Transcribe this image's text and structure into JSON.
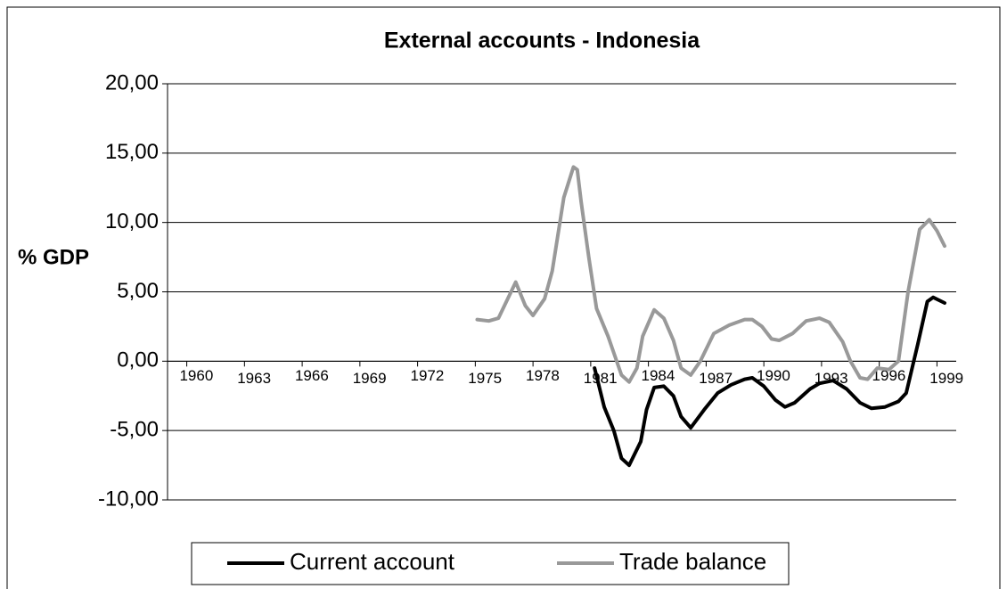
{
  "chart_data": {
    "type": "line",
    "title": "External accounts - Indonesia",
    "y_label": "% GDP",
    "xlim": [
      1958.5,
      1999.5
    ],
    "xticks": [
      1960,
      1963,
      1966,
      1969,
      1972,
      1975,
      1978,
      1981,
      1984,
      1987,
      1990,
      1993,
      1996,
      1999
    ],
    "ylim": [
      -10,
      20
    ],
    "yticks": [
      {
        "value": -10,
        "label": "-10,00"
      },
      {
        "value": -5,
        "label": "-5,00"
      },
      {
        "value": 0,
        "label": "0,00"
      },
      {
        "value": 5,
        "label": "5,00"
      },
      {
        "value": 10,
        "label": "10,00"
      },
      {
        "value": 15,
        "label": "15,00"
      },
      {
        "value": 20,
        "label": "20,00"
      }
    ],
    "grid": true,
    "legend": "bottom",
    "series": [
      {
        "name": "Current account",
        "color": "#000000",
        "x": [
          1980.7,
          1981.2,
          1981.7,
          1982.1,
          1982.5,
          1983.1,
          1983.4,
          1983.8,
          1984.3,
          1984.8,
          1985.2,
          1985.7,
          1986.4,
          1987.1,
          1987.8,
          1988.5,
          1988.9,
          1989.5,
          1990.1,
          1990.6,
          1991.1,
          1991.9,
          1992.4,
          1993.1,
          1993.8,
          1994.5,
          1995.1,
          1995.8,
          1996.5,
          1996.9,
          1997.5,
          1998.0,
          1998.3,
          1998.9
        ],
        "values": [
          -0.5,
          -3.3,
          -5,
          -7,
          -7.5,
          -5.8,
          -3.5,
          -1.9,
          -1.8,
          -2.5,
          -4,
          -4.8,
          -3.5,
          -2.3,
          -1.7,
          -1.3,
          -1.2,
          -1.8,
          -2.8,
          -3.3,
          -3,
          -2,
          -1.6,
          -1.4,
          -2,
          -3,
          -3.4,
          -3.3,
          -2.9,
          -2.3,
          1.2,
          4.3,
          4.6,
          4.2
        ]
      },
      {
        "name": "Trade balance",
        "color": "#999999",
        "x": [
          1974.6,
          1975.2,
          1975.7,
          1976.6,
          1977.1,
          1977.5,
          1978.1,
          1978.5,
          1979.1,
          1979.6,
          1979.8,
          1980.0,
          1980.4,
          1980.8,
          1981.4,
          1982.1,
          1982.5,
          1982.9,
          1983.2,
          1983.8,
          1984.3,
          1984.8,
          1985.2,
          1985.7,
          1986.2,
          1986.9,
          1987.7,
          1988.5,
          1988.9,
          1989.4,
          1989.9,
          1990.3,
          1991.0,
          1991.7,
          1992.4,
          1992.9,
          1993.6,
          1994.0,
          1994.5,
          1994.9,
          1995.4,
          1996.0,
          1996.5,
          1997.0,
          1997.6,
          1998.1,
          1998.5,
          1998.9
        ],
        "values": [
          3,
          2.9,
          3.1,
          5.7,
          4,
          3.3,
          4.5,
          6.5,
          11.8,
          14,
          13.8,
          11.5,
          7.5,
          3.8,
          1.8,
          -1,
          -1.5,
          -0.5,
          1.8,
          3.7,
          3.1,
          1.5,
          -0.5,
          -1,
          0,
          2,
          2.6,
          3,
          3,
          2.5,
          1.6,
          1.5,
          2,
          2.9,
          3.1,
          2.8,
          1.4,
          0,
          -1.2,
          -1.3,
          -0.5,
          -0.6,
          0,
          5,
          9.5,
          10.2,
          9.4,
          8.3
        ]
      }
    ]
  }
}
